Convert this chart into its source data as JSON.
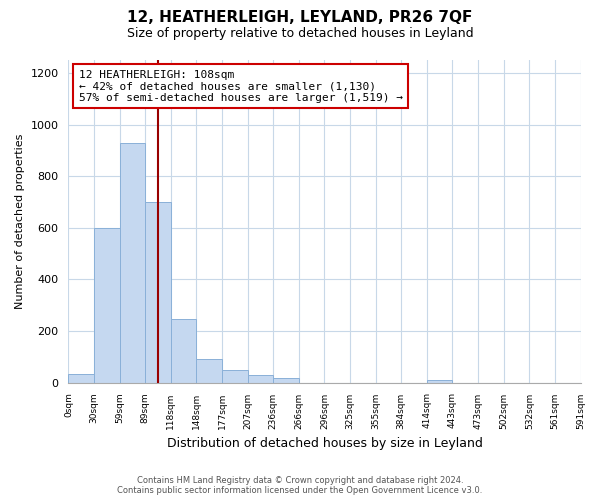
{
  "title": "12, HEATHERLEIGH, LEYLAND, PR26 7QF",
  "subtitle": "Size of property relative to detached houses in Leyland",
  "xlabel": "Distribution of detached houses by size in Leyland",
  "ylabel": "Number of detached properties",
  "bin_labels": [
    "0sqm",
    "30sqm",
    "59sqm",
    "89sqm",
    "118sqm",
    "148sqm",
    "177sqm",
    "207sqm",
    "236sqm",
    "266sqm",
    "296sqm",
    "325sqm",
    "355sqm",
    "384sqm",
    "414sqm",
    "443sqm",
    "473sqm",
    "502sqm",
    "532sqm",
    "561sqm",
    "591sqm"
  ],
  "bar_heights": [
    35,
    600,
    930,
    700,
    245,
    90,
    50,
    30,
    18,
    0,
    0,
    0,
    0,
    0,
    10,
    0,
    0,
    0,
    0,
    0
  ],
  "bar_color": "#c5d8f0",
  "bar_edgecolor": "#8ab0d8",
  "vline_x": 3.5,
  "vline_color": "#990000",
  "annotation_title": "12 HEATHERLEIGH: 108sqm",
  "annotation_line1": "← 42% of detached houses are smaller (1,130)",
  "annotation_line2": "57% of semi-detached houses are larger (1,519) →",
  "annotation_box_facecolor": "#ffffff",
  "annotation_box_edgecolor": "#cc0000",
  "ylim": [
    0,
    1250
  ],
  "yticks": [
    0,
    200,
    400,
    600,
    800,
    1000,
    1200
  ],
  "footer_line1": "Contains HM Land Registry data © Crown copyright and database right 2024.",
  "footer_line2": "Contains public sector information licensed under the Open Government Licence v3.0.",
  "bg_color": "#ffffff",
  "grid_color": "#c8d8e8"
}
